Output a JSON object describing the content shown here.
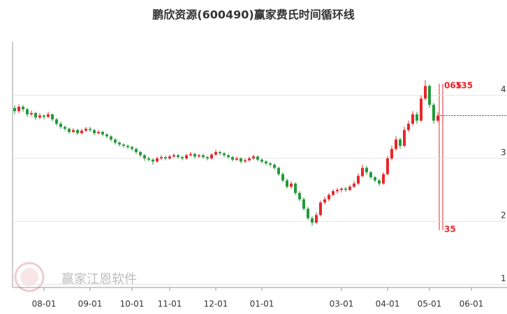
{
  "chart_data": {
    "type": "candlestick",
    "title": "鹏欣资源(600490)赢家费氏时间循环线",
    "categories": [
      null,
      null,
      null,
      null,
      null,
      null,
      null,
      "08-01",
      null,
      null,
      null,
      null,
      null,
      null,
      null,
      null,
      null,
      null,
      "09-01",
      null,
      null,
      null,
      null,
      null,
      null,
      null,
      null,
      null,
      "10-01",
      null,
      null,
      null,
      null,
      null,
      null,
      null,
      null,
      "11-01",
      null,
      null,
      null,
      null,
      null,
      null,
      null,
      null,
      null,
      null,
      "12-01",
      null,
      null,
      null,
      null,
      null,
      null,
      null,
      null,
      null,
      null,
      "01-01",
      null,
      null,
      null,
      null,
      null,
      null,
      null,
      null,
      null,
      null,
      null,
      null,
      null,
      null,
      null,
      null,
      null,
      null,
      "03-01",
      null,
      null,
      null,
      null,
      null,
      null,
      null,
      null,
      null,
      null,
      "04-01",
      null,
      null,
      null,
      null,
      null,
      null,
      null,
      null,
      null,
      "05-01",
      null,
      null,
      null,
      null,
      null,
      null,
      null,
      null,
      null,
      "06-01",
      null,
      null
    ],
    "candles": [
      [
        3.8,
        3.84,
        3.7,
        3.75
      ],
      [
        3.75,
        3.86,
        3.72,
        3.82
      ],
      [
        3.82,
        3.85,
        3.74,
        3.78
      ],
      [
        3.78,
        3.8,
        3.66,
        3.7
      ],
      [
        3.7,
        3.76,
        3.67,
        3.72
      ],
      [
        3.72,
        3.74,
        3.61,
        3.65
      ],
      [
        3.65,
        3.72,
        3.62,
        3.68
      ],
      [
        3.68,
        3.7,
        3.62,
        3.66
      ],
      [
        3.66,
        3.74,
        3.64,
        3.7
      ],
      [
        3.7,
        3.71,
        3.59,
        3.62
      ],
      [
        3.62,
        3.64,
        3.52,
        3.55
      ],
      [
        3.55,
        3.58,
        3.47,
        3.5
      ],
      [
        3.5,
        3.52,
        3.44,
        3.47
      ],
      [
        3.47,
        3.49,
        3.39,
        3.42
      ],
      [
        3.42,
        3.48,
        3.4,
        3.45
      ],
      [
        3.45,
        3.47,
        3.37,
        3.4
      ],
      [
        3.4,
        3.47,
        3.38,
        3.44
      ],
      [
        3.44,
        3.5,
        3.42,
        3.47
      ],
      [
        3.47,
        3.5,
        3.42,
        3.45
      ],
      [
        3.45,
        3.47,
        3.37,
        3.4
      ],
      [
        3.4,
        3.45,
        3.38,
        3.42
      ],
      [
        3.42,
        3.44,
        3.35,
        3.38
      ],
      [
        3.38,
        3.4,
        3.32,
        3.35
      ],
      [
        3.35,
        3.37,
        3.27,
        3.3
      ],
      [
        3.3,
        3.32,
        3.22,
        3.25
      ],
      [
        3.25,
        3.27,
        3.19,
        3.22
      ],
      [
        3.22,
        3.24,
        3.17,
        3.2
      ],
      [
        3.2,
        3.22,
        3.15,
        3.18
      ],
      [
        3.18,
        3.2,
        3.12,
        3.15
      ],
      [
        3.15,
        3.17,
        3.07,
        3.1
      ],
      [
        3.1,
        3.12,
        3.02,
        3.05
      ],
      [
        3.05,
        3.07,
        2.96,
        3.0
      ],
      [
        3.0,
        3.03,
        2.95,
        2.98
      ],
      [
        2.98,
        3.0,
        2.9,
        2.95
      ],
      [
        2.95,
        3.03,
        2.93,
        3.0
      ],
      [
        3.0,
        3.05,
        2.98,
        3.02
      ],
      [
        3.02,
        3.04,
        2.97,
        3.0
      ],
      [
        3.0,
        3.06,
        2.98,
        3.03
      ],
      [
        3.03,
        3.08,
        3.01,
        3.05
      ],
      [
        3.05,
        3.07,
        3.0,
        3.02
      ],
      [
        3.02,
        3.04,
        2.97,
        3.0
      ],
      [
        3.0,
        3.07,
        2.98,
        3.05
      ],
      [
        3.05,
        3.1,
        3.03,
        3.07
      ],
      [
        3.07,
        3.09,
        3.0,
        3.03
      ],
      [
        3.03,
        3.07,
        3.01,
        3.05
      ],
      [
        3.05,
        3.07,
        3.0,
        3.02
      ],
      [
        3.02,
        3.04,
        2.97,
        3.0
      ],
      [
        3.0,
        3.08,
        2.98,
        3.06
      ],
      [
        3.06,
        3.14,
        3.04,
        3.1
      ],
      [
        3.1,
        3.12,
        3.05,
        3.08
      ],
      [
        3.08,
        3.1,
        3.02,
        3.05
      ],
      [
        3.05,
        3.07,
        3.0,
        3.02
      ],
      [
        3.02,
        3.04,
        2.95,
        2.98
      ],
      [
        2.98,
        3.03,
        2.96,
        3.0
      ],
      [
        3.0,
        3.02,
        2.92,
        2.95
      ],
      [
        2.95,
        3.0,
        2.93,
        2.97
      ],
      [
        2.97,
        3.03,
        2.95,
        3.0
      ],
      [
        3.0,
        3.06,
        2.98,
        3.03
      ],
      [
        3.03,
        3.05,
        2.95,
        2.98
      ],
      [
        2.98,
        3.0,
        2.92,
        2.95
      ],
      [
        2.95,
        2.97,
        2.89,
        2.92
      ],
      [
        2.92,
        2.94,
        2.87,
        2.9
      ],
      [
        2.9,
        2.92,
        2.82,
        2.85
      ],
      [
        2.85,
        2.87,
        2.72,
        2.75
      ],
      [
        2.75,
        2.78,
        2.62,
        2.65
      ],
      [
        2.65,
        2.68,
        2.52,
        2.55
      ],
      [
        2.55,
        2.64,
        2.52,
        2.6
      ],
      [
        2.6,
        2.62,
        2.42,
        2.45
      ],
      [
        2.45,
        2.48,
        2.32,
        2.35
      ],
      [
        2.35,
        2.38,
        2.17,
        2.2
      ],
      [
        2.2,
        2.23,
        2.02,
        2.05
      ],
      [
        2.05,
        2.08,
        1.93,
        1.98
      ],
      [
        1.98,
        2.14,
        1.96,
        2.1
      ],
      [
        2.1,
        2.33,
        2.08,
        2.3
      ],
      [
        2.3,
        2.39,
        2.27,
        2.35
      ],
      [
        2.35,
        2.45,
        2.32,
        2.42
      ],
      [
        2.42,
        2.51,
        2.4,
        2.48
      ],
      [
        2.48,
        2.53,
        2.44,
        2.5
      ],
      [
        2.5,
        2.54,
        2.46,
        2.52
      ],
      [
        2.52,
        2.55,
        2.47,
        2.5
      ],
      [
        2.5,
        2.58,
        2.48,
        2.55
      ],
      [
        2.55,
        2.64,
        2.53,
        2.6
      ],
      [
        2.6,
        2.76,
        2.58,
        2.72
      ],
      [
        2.72,
        2.9,
        2.7,
        2.85
      ],
      [
        2.85,
        2.88,
        2.74,
        2.78
      ],
      [
        2.78,
        2.8,
        2.67,
        2.7
      ],
      [
        2.7,
        2.72,
        2.62,
        2.65
      ],
      [
        2.65,
        2.68,
        2.56,
        2.6
      ],
      [
        2.6,
        2.78,
        2.58,
        2.75
      ],
      [
        2.75,
        3.04,
        2.73,
        3.0
      ],
      [
        3.0,
        3.2,
        2.97,
        3.15
      ],
      [
        3.15,
        3.35,
        3.12,
        3.3
      ],
      [
        3.3,
        3.33,
        3.15,
        3.2
      ],
      [
        3.2,
        3.5,
        3.18,
        3.45
      ],
      [
        3.45,
        3.6,
        3.42,
        3.55
      ],
      [
        3.55,
        3.75,
        3.52,
        3.7
      ],
      [
        3.7,
        3.74,
        3.55,
        3.6
      ],
      [
        3.6,
        4.0,
        3.58,
        3.95
      ],
      [
        3.95,
        4.24,
        3.92,
        4.15
      ],
      [
        4.15,
        4.18,
        3.8,
        3.85
      ],
      [
        3.85,
        3.88,
        3.55,
        3.6
      ],
      [
        3.6,
        3.73,
        3.57,
        3.68
      ]
    ],
    "up_color": "#e8272a",
    "down_color": "#249a3a",
    "ylim": [
      0.95,
      4.95
    ],
    "yticks": [
      1,
      2,
      3,
      4
    ],
    "grid": true,
    "annotations": [
      "065",
      "135",
      "35"
    ],
    "watermark": "赢家江恩软件"
  }
}
